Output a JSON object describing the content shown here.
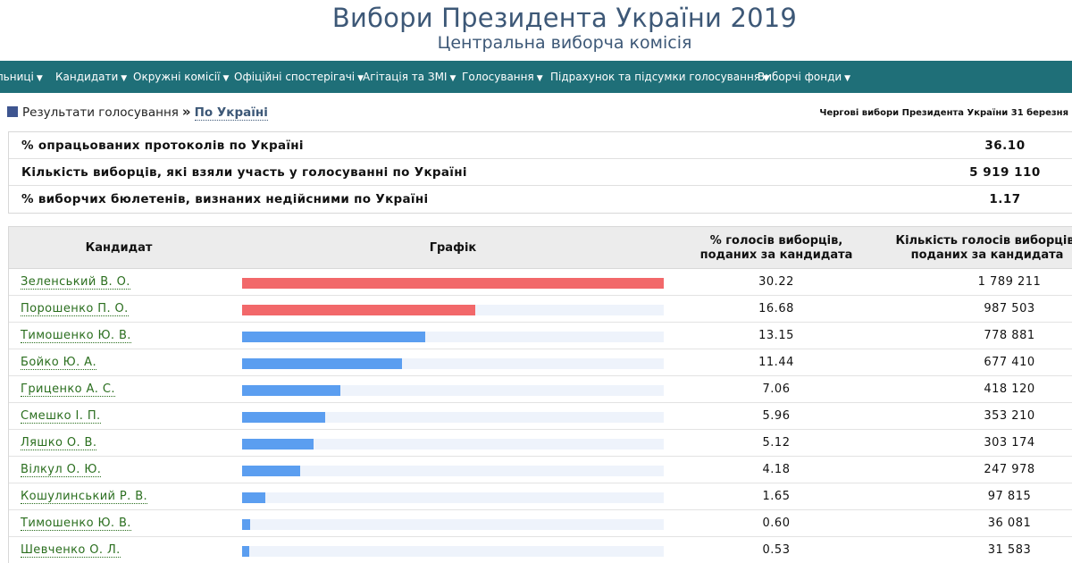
{
  "header": {
    "title": "Вибори Президента України 2019",
    "subtitle": "Центральна виборча комісія"
  },
  "nav": {
    "items": [
      {
        "label": "льниці",
        "caret": "▼"
      },
      {
        "label": "Кандидати",
        "caret": "▼"
      },
      {
        "label": "Окружні комісії",
        "caret": "▼"
      },
      {
        "label": "Офіційні спостерігачі",
        "caret": "▼"
      },
      {
        "label": "Агітація та ЗМІ",
        "caret": "▼"
      },
      {
        "label": "Голосування",
        "caret": "▼"
      },
      {
        "label": "Підрахунок та підсумки голосування",
        "caret": "▼"
      },
      {
        "label": "Виборчі фонди",
        "caret": "▼"
      }
    ]
  },
  "breadcrumb": {
    "section": "Результати голосування",
    "separator": "»",
    "current": "По Україні"
  },
  "election_name": "Чергові вибори Президента України 31 березня",
  "summary": [
    {
      "label": "% опрацьованих протоколів по Україні",
      "value": "36.10"
    },
    {
      "label": "Кількість виборців, які взяли участь у голосуванні по Україні",
      "value": "5 919 110"
    },
    {
      "label": "% виборчих бюлетенів, визнаних недійсними по Україні",
      "value": "1.17"
    }
  ],
  "table": {
    "headers": {
      "candidate": "Кандидат",
      "chart": "Графік",
      "pct_line1": "% голосів виборців,",
      "pct_line2": "поданих за кандидата",
      "votes_line1": "Кількість голосів виборців,",
      "votes_line2": "поданих за кандидата"
    },
    "colors": {
      "leader_bar": "#f2686a",
      "other_bar": "#5b9ef0",
      "track": "#eef3fb"
    },
    "max_pct": 30.22,
    "rows": [
      {
        "name": "Зеленський В. О.",
        "pct": "30.22",
        "votes": "1 789 211",
        "leader": true
      },
      {
        "name": "Порошенко П. О.",
        "pct": "16.68",
        "votes": "987 503",
        "leader": true
      },
      {
        "name": "Тимошенко Ю. В.",
        "pct": "13.15",
        "votes": "778 881",
        "leader": false
      },
      {
        "name": "Бойко Ю. А.",
        "pct": "11.44",
        "votes": "677 410",
        "leader": false
      },
      {
        "name": "Гриценко А. С.",
        "pct": "7.06",
        "votes": "418 120",
        "leader": false
      },
      {
        "name": "Смешко І. П.",
        "pct": "5.96",
        "votes": "353 210",
        "leader": false
      },
      {
        "name": "Ляшко О. В.",
        "pct": "5.12",
        "votes": "303 174",
        "leader": false
      },
      {
        "name": "Вілкул О. Ю.",
        "pct": "4.18",
        "votes": "247 978",
        "leader": false
      },
      {
        "name": "Кошулинський Р. В.",
        "pct": "1.65",
        "votes": "97 815",
        "leader": false
      },
      {
        "name": "Тимошенко Ю. В.",
        "pct": "0.60",
        "votes": "36 081",
        "leader": false
      },
      {
        "name": "Шевченко О. Л.",
        "pct": "0.53",
        "votes": "31 583",
        "leader": false
      }
    ]
  }
}
